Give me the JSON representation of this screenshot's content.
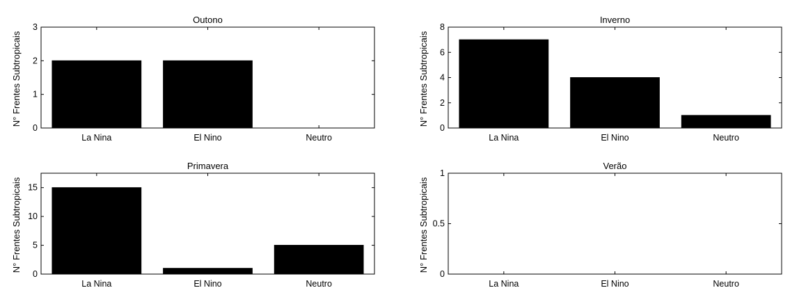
{
  "chart_data": [
    {
      "type": "bar",
      "title": "Outono",
      "ylabel": "N° Frentes Subtropicais",
      "xlabel": "",
      "categories": [
        "La Nina",
        "El Nino",
        "Neutro"
      ],
      "values": [
        2,
        2,
        0
      ],
      "ylim": [
        0,
        3
      ],
      "yticks": [
        0,
        1,
        2,
        3
      ],
      "bar_color": "#000000",
      "grid": false
    },
    {
      "type": "bar",
      "title": "Inverno",
      "ylabel": "N° Frentes Subtropicais",
      "xlabel": "",
      "categories": [
        "La Nina",
        "El Nino",
        "Neutro"
      ],
      "values": [
        7,
        4,
        1
      ],
      "ylim": [
        0,
        8
      ],
      "yticks": [
        0,
        2,
        4,
        6,
        8
      ],
      "bar_color": "#000000",
      "grid": false
    },
    {
      "type": "bar",
      "title": "Primavera",
      "ylabel": "N° Frentes Subtropicais",
      "xlabel": "",
      "categories": [
        "La Nina",
        "El Nino",
        "Neutro"
      ],
      "values": [
        15,
        1,
        5
      ],
      "ylim": [
        0,
        17.5
      ],
      "yticks": [
        0,
        5,
        10,
        15
      ],
      "bar_color": "#000000",
      "grid": false
    },
    {
      "type": "bar",
      "title": "Verão",
      "ylabel": "N° Frentes Subtropicais",
      "xlabel": "",
      "categories": [
        "La Nina",
        "El Nino",
        "Neutro"
      ],
      "values": [
        0,
        0,
        0
      ],
      "ylim": [
        0,
        1
      ],
      "yticks": [
        0,
        0.5,
        1
      ],
      "bar_color": "#000000",
      "grid": false
    }
  ]
}
